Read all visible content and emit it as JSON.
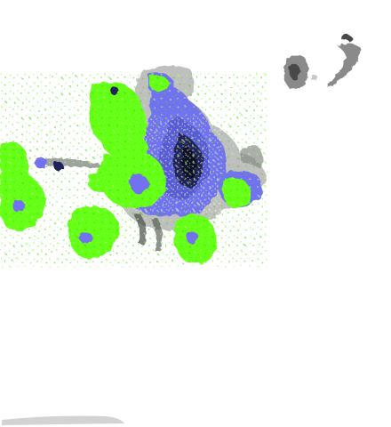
{
  "map": {
    "background": "#ffffff",
    "colors": {
      "green": "#66ff14",
      "green_dark": "#3fd40c",
      "blue": "#7272f0",
      "blue_mid": "#5a5ad8",
      "navy": "#20205a",
      "dark": "#101028",
      "grey": "#8a8a8a",
      "grey_light": "#c8c8c8",
      "grey_dark": "#4a4a4a"
    },
    "legend": "none",
    "labels": []
  }
}
